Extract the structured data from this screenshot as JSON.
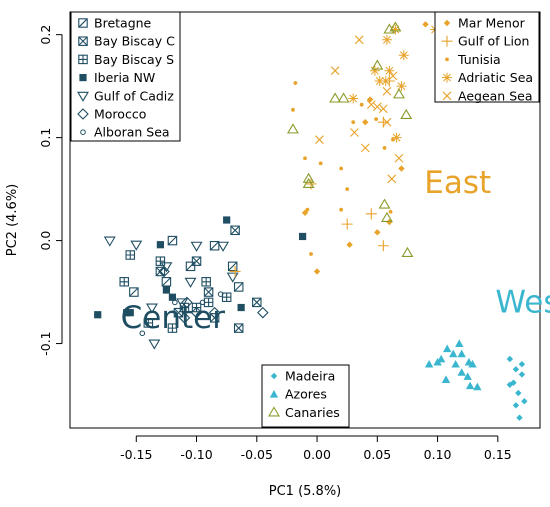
{
  "colors": {
    "center": "#1f4e63",
    "east": "#e8a32a",
    "west": "#3ab7cf",
    "canaries": "#8a9a2a",
    "axis": "#000000"
  },
  "chart_data": {
    "type": "scatter",
    "title": "",
    "xlabel": "PC1 (5.8%)",
    "ylabel": "PC2 (4.6%)",
    "xlim": [
      -0.205,
      0.185
    ],
    "ylim": [
      -0.182,
      0.222
    ],
    "xticks": [
      -0.15,
      -0.1,
      -0.05,
      0.0,
      0.05,
      0.1,
      0.15
    ],
    "xtick_labels": [
      "-0.15",
      "-0.10",
      "-0.05",
      "0.00",
      "0.05",
      "0.10",
      "0.15"
    ],
    "yticks": [
      -0.1,
      0.0,
      0.1,
      0.2
    ],
    "ytick_labels": [
      "-0.1",
      "0.0",
      "0.1",
      "0.2"
    ],
    "grid": false,
    "annotations": [
      {
        "text": "Center",
        "x": -0.163,
        "y": -0.085,
        "color": "#1f4e63",
        "size": "large"
      },
      {
        "text": "East",
        "x": 0.089,
        "y": 0.046,
        "color": "#e8a32a",
        "size": "large"
      },
      {
        "text": "West",
        "x": 0.148,
        "y": -0.07,
        "color": "#3ab7cf",
        "size": "large"
      }
    ],
    "legends": [
      {
        "position": "top-left",
        "entries": [
          {
            "name": "Bretagne",
            "marker": "box-x-open"
          },
          {
            "name": "Bay Biscay C",
            "marker": "box-x"
          },
          {
            "name": "Bay Biscay S",
            "marker": "box-plus"
          },
          {
            "name": "Iberia NW",
            "marker": "square-filled"
          },
          {
            "name": "Gulf of Cadiz",
            "marker": "triangle-down-open"
          },
          {
            "name": "Morocco",
            "marker": "diamond-open"
          },
          {
            "name": "Alboran Sea",
            "marker": "circle-small-open"
          }
        ]
      },
      {
        "position": "top-right",
        "entries": [
          {
            "name": "Mar Menor",
            "marker": "diamond-filled"
          },
          {
            "name": "Gulf of Lion",
            "marker": "plus"
          },
          {
            "name": "Tunisia",
            "marker": "dot"
          },
          {
            "name": "Adriatic Sea",
            "marker": "asterisk"
          },
          {
            "name": "Aegean Sea",
            "marker": "x"
          }
        ]
      },
      {
        "position": "bottom-center",
        "entries": [
          {
            "name": "Madeira",
            "marker": "diamond-filled"
          },
          {
            "name": "Azores",
            "marker": "triangle-filled"
          },
          {
            "name": "Canaries",
            "marker": "triangle-open"
          }
        ]
      }
    ],
    "series": [
      {
        "name": "Bretagne",
        "marker": "box-x-open",
        "color": "#1f4e63",
        "points": [
          [
            -0.152,
            -0.05
          ],
          [
            -0.125,
            -0.04
          ],
          [
            -0.105,
            -0.025
          ],
          [
            -0.085,
            -0.005
          ],
          [
            -0.07,
            -0.025
          ],
          [
            -0.065,
            -0.045
          ],
          [
            -0.12,
            0.0
          ]
        ]
      },
      {
        "name": "Bay Biscay C",
        "marker": "box-x",
        "color": "#1f4e63",
        "points": [
          [
            -0.068,
            0.01
          ],
          [
            -0.1,
            -0.02
          ],
          [
            -0.09,
            -0.05
          ],
          [
            -0.085,
            -0.075
          ],
          [
            -0.13,
            -0.03
          ],
          [
            -0.115,
            -0.07
          ],
          [
            -0.065,
            -0.085
          ],
          [
            -0.05,
            -0.06
          ]
        ]
      },
      {
        "name": "Bay Biscay S",
        "marker": "box-plus",
        "color": "#1f4e63",
        "points": [
          [
            -0.155,
            -0.014
          ],
          [
            -0.13,
            -0.02
          ],
          [
            -0.14,
            -0.08
          ],
          [
            -0.11,
            -0.065
          ],
          [
            -0.1,
            -0.065
          ],
          [
            -0.092,
            -0.04
          ],
          [
            -0.09,
            -0.06
          ],
          [
            -0.075,
            -0.055
          ],
          [
            -0.16,
            -0.04
          ],
          [
            -0.12,
            -0.085
          ]
        ]
      },
      {
        "name": "Iberia NW",
        "marker": "square-filled",
        "color": "#1f4e63",
        "points": [
          [
            -0.182,
            -0.072
          ],
          [
            -0.158,
            -0.07
          ],
          [
            -0.155,
            -0.07
          ],
          [
            -0.13,
            -0.004
          ],
          [
            -0.12,
            -0.055
          ],
          [
            -0.075,
            0.02
          ],
          [
            -0.063,
            -0.065
          ],
          [
            -0.012,
            0.004
          ],
          [
            -0.125,
            -0.048
          ]
        ]
      },
      {
        "name": "Gulf of Cadiz",
        "marker": "triangle-down-open",
        "color": "#1f4e63",
        "points": [
          [
            -0.172,
            0.0
          ],
          [
            -0.15,
            -0.004
          ],
          [
            -0.137,
            -0.065
          ],
          [
            -0.125,
            -0.025
          ],
          [
            -0.105,
            -0.04
          ],
          [
            -0.1,
            -0.005
          ],
          [
            -0.078,
            -0.005
          ],
          [
            -0.07,
            -0.035
          ],
          [
            -0.135,
            -0.1
          ],
          [
            -0.112,
            -0.06
          ]
        ]
      },
      {
        "name": "Morocco",
        "marker": "diamond-open",
        "color": "#1f4e63",
        "points": [
          [
            -0.127,
            -0.03
          ],
          [
            -0.11,
            -0.075
          ],
          [
            -0.1,
            -0.07
          ],
          [
            -0.085,
            -0.07
          ],
          [
            -0.045,
            -0.07
          ],
          [
            -0.108,
            -0.06
          ]
        ]
      },
      {
        "name": "Alboran Sea",
        "marker": "circle-small-open",
        "color": "#1f4e63",
        "points": [
          [
            -0.145,
            -0.09
          ],
          [
            -0.118,
            -0.06
          ],
          [
            -0.095,
            -0.06
          ],
          [
            -0.08,
            -0.052
          ]
        ]
      },
      {
        "name": "Mar Menor",
        "marker": "diamond-filled",
        "color": "#e8a32a",
        "points": [
          [
            -0.01,
            0.027
          ],
          [
            0.0,
            -0.03
          ],
          [
            0.027,
            -0.004
          ],
          [
            0.05,
            0.008
          ],
          [
            0.06,
            0.018
          ],
          [
            0.07,
            0.07
          ],
          [
            0.09,
            0.21
          ],
          [
            0.044,
            0.137
          ],
          [
            0.04,
            0.115
          ]
        ]
      },
      {
        "name": "Gulf of Lion",
        "marker": "plus",
        "color": "#e8a32a",
        "points": [
          [
            -0.068,
            -0.03
          ],
          [
            -0.005,
            0.055
          ],
          [
            0.025,
            0.016
          ],
          [
            0.045,
            0.026
          ],
          [
            0.055,
            -0.005
          ],
          [
            0.055,
            0.115
          ],
          [
            0.06,
            0.155
          ]
        ]
      },
      {
        "name": "Tunisia",
        "marker": "dot",
        "color": "#e8a32a",
        "points": [
          [
            -0.02,
            0.127
          ],
          [
            -0.018,
            0.153
          ],
          [
            -0.01,
            0.08
          ],
          [
            -0.008,
            0.03
          ],
          [
            0.003,
            0.075
          ],
          [
            0.02,
            0.03
          ],
          [
            0.02,
            0.07
          ],
          [
            0.03,
            0.115
          ],
          [
            0.037,
            0.132
          ],
          [
            0.049,
            0.118
          ],
          [
            0.056,
            0.09
          ],
          [
            0.063,
            0.098
          ],
          [
            0.061,
            0.028
          ],
          [
            -0.005,
            -0.013
          ],
          [
            0.025,
            0.05
          ]
        ]
      },
      {
        "name": "Adriatic Sea",
        "marker": "asterisk",
        "color": "#e8a32a",
        "points": [
          [
            0.03,
            0.138
          ],
          [
            0.048,
            0.165
          ],
          [
            0.052,
            0.155
          ],
          [
            0.057,
            0.155
          ],
          [
            0.06,
            0.165
          ],
          [
            0.065,
            0.205
          ],
          [
            0.072,
            0.18
          ],
          [
            0.07,
            0.15
          ],
          [
            0.098,
            0.205
          ],
          [
            0.058,
            0.195
          ],
          [
            0.066,
            0.1
          ]
        ]
      },
      {
        "name": "Aegean Sea",
        "marker": "x",
        "color": "#e8a32a",
        "points": [
          [
            0.015,
            0.165
          ],
          [
            0.035,
            0.195
          ],
          [
            0.045,
            0.132
          ],
          [
            0.05,
            0.13
          ],
          [
            0.055,
            0.128
          ],
          [
            0.058,
            0.115
          ],
          [
            0.062,
            0.06
          ],
          [
            0.068,
            0.08
          ],
          [
            0.002,
            0.098
          ],
          [
            0.031,
            0.105
          ],
          [
            0.04,
            0.09
          ],
          [
            0.058,
            0.145
          ],
          [
            0.063,
            0.16
          ]
        ]
      },
      {
        "name": "Madeira",
        "marker": "diamond-filled",
        "color": "#3ab7cf",
        "points": [
          [
            0.16,
            -0.115
          ],
          [
            0.165,
            -0.125
          ],
          [
            0.17,
            -0.12
          ],
          [
            0.17,
            -0.13
          ],
          [
            0.163,
            -0.138
          ],
          [
            0.167,
            -0.148
          ],
          [
            0.172,
            -0.156
          ],
          [
            0.16,
            -0.14
          ],
          [
            0.165,
            -0.16
          ],
          [
            0.168,
            -0.172
          ]
        ]
      },
      {
        "name": "Azores",
        "marker": "triangle-filled",
        "color": "#3ab7cf",
        "points": [
          [
            0.093,
            -0.12
          ],
          [
            0.1,
            -0.118
          ],
          [
            0.103,
            -0.115
          ],
          [
            0.108,
            -0.105
          ],
          [
            0.113,
            -0.11
          ],
          [
            0.115,
            -0.12
          ],
          [
            0.118,
            -0.1
          ],
          [
            0.12,
            -0.11
          ],
          [
            0.12,
            -0.128
          ],
          [
            0.126,
            -0.118
          ],
          [
            0.107,
            -0.135
          ],
          [
            0.125,
            -0.132
          ],
          [
            0.127,
            -0.141
          ],
          [
            0.133,
            -0.142
          ],
          [
            0.129,
            -0.12
          ]
        ]
      },
      {
        "name": "Canaries",
        "marker": "triangle-open",
        "color": "#8a9a2a",
        "points": [
          [
            -0.02,
            0.108
          ],
          [
            -0.007,
            0.06
          ],
          [
            -0.007,
            0.055
          ],
          [
            0.065,
            0.207
          ],
          [
            0.06,
            0.205
          ],
          [
            0.022,
            0.138
          ],
          [
            0.074,
            0.122
          ],
          [
            0.05,
            0.17
          ],
          [
            0.068,
            0.142
          ],
          [
            0.056,
            0.035
          ],
          [
            0.058,
            0.022
          ],
          [
            0.075,
            -0.012
          ],
          [
            0.015,
            0.138
          ]
        ]
      }
    ]
  }
}
